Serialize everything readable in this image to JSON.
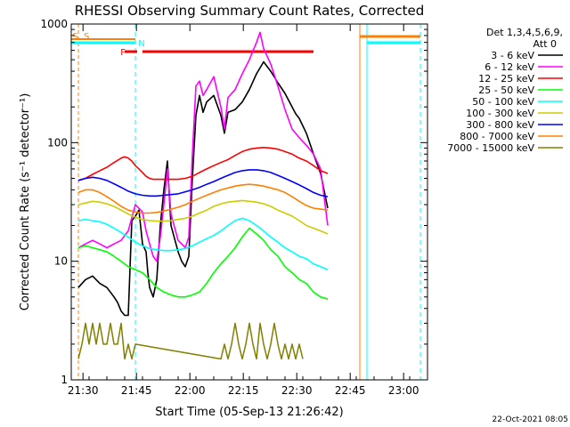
{
  "chart_data": {
    "type": "line",
    "title": "RHESSI Observing Summary Count Rates, Corrected",
    "xlabel": "Start Time (05-Sep-13 21:26:42)",
    "ylabel": "Corrected Count Rate (s⁻¹ detector⁻¹)",
    "x_unit": "minutes since 21:26:42",
    "xlim": [
      0,
      100
    ],
    "ylim": [
      1,
      1000
    ],
    "yscale": "log",
    "x_ticks": [
      {
        "label": "21:30",
        "value": 3.3
      },
      {
        "label": "21:45",
        "value": 18.3
      },
      {
        "label": "22:00",
        "value": 33.3
      },
      {
        "label": "22:15",
        "value": 48.3
      },
      {
        "label": "22:30",
        "value": 63.3
      },
      {
        "label": "22:45",
        "value": 78.3
      },
      {
        "label": "23:00",
        "value": 93.3
      }
    ],
    "y_ticks": [
      {
        "label": "1",
        "value": 1
      },
      {
        "label": "10",
        "value": 10
      },
      {
        "label": "100",
        "value": 100
      },
      {
        "label": "1000",
        "value": 1000
      }
    ],
    "legend_header": [
      "Det 1,3,4,5,6,9,",
      "Att 0"
    ],
    "footer_date": "22-Oct-2021 08:05",
    "series": [
      {
        "name": "3 - 6 keV",
        "color": "#000000",
        "x": [
          2,
          4,
          6,
          8,
          10,
          12,
          13,
          14,
          15,
          16,
          17,
          18,
          19,
          20,
          21,
          21.5,
          22,
          23,
          24,
          25,
          26,
          27,
          28,
          30,
          31,
          32,
          33,
          34,
          35,
          36,
          37,
          38,
          40,
          42,
          43,
          44,
          46,
          48,
          50,
          52,
          54,
          56,
          58,
          60,
          62,
          63,
          64,
          66,
          68,
          70,
          72
        ],
        "y": [
          6,
          7,
          7.5,
          6.5,
          6,
          5,
          4.5,
          3.8,
          3.5,
          3.5,
          22,
          24,
          27,
          14,
          12,
          8,
          6,
          5,
          7,
          20,
          40,
          70,
          20,
          12,
          10,
          9,
          11,
          50,
          170,
          250,
          180,
          220,
          250,
          170,
          120,
          180,
          190,
          220,
          280,
          380,
          480,
          400,
          320,
          260,
          200,
          175,
          160,
          120,
          80,
          55,
          28
        ]
      },
      {
        "name": "6 - 12 keV",
        "color": "#ff00ff",
        "x": [
          2,
          4,
          6,
          8,
          10,
          12,
          14,
          16,
          18,
          20,
          21,
          22,
          23,
          24,
          25,
          26,
          27,
          28,
          30,
          31,
          32,
          33,
          34,
          35,
          36,
          37,
          38,
          40,
          42,
          43,
          44,
          46,
          48,
          50,
          52,
          53,
          54,
          56,
          58,
          60,
          62,
          64,
          66,
          68,
          70,
          72
        ],
        "y": [
          13,
          14,
          15,
          14,
          13,
          14,
          15,
          18,
          30,
          26,
          18,
          14,
          11,
          10,
          16,
          30,
          60,
          25,
          15,
          14,
          13,
          16,
          80,
          300,
          330,
          250,
          280,
          360,
          200,
          130,
          240,
          280,
          380,
          500,
          700,
          850,
          620,
          460,
          300,
          190,
          130,
          110,
          95,
          80,
          60,
          20
        ]
      },
      {
        "name": "12 - 25 keV",
        "color": "#ff0000",
        "x": [
          2,
          4,
          6,
          8,
          10,
          12,
          14,
          15,
          16,
          17,
          18,
          19,
          20,
          21,
          22,
          23,
          24,
          26,
          28,
          30,
          32,
          34,
          36,
          38,
          40,
          42,
          44,
          46,
          48,
          50,
          52,
          54,
          56,
          58,
          60,
          62,
          64,
          66,
          68,
          70,
          72
        ],
        "y": [
          48,
          50,
          54,
          58,
          62,
          68,
          74,
          76,
          74,
          70,
          64,
          60,
          56,
          52,
          50,
          49,
          49,
          49,
          49,
          49,
          50,
          52,
          56,
          60,
          64,
          68,
          72,
          78,
          84,
          88,
          90,
          91,
          90,
          88,
          84,
          80,
          74,
          70,
          64,
          58,
          55
        ]
      },
      {
        "name": "25 - 50 keV",
        "color": "#00ff00",
        "x": [
          2,
          4,
          6,
          8,
          10,
          12,
          14,
          16,
          18,
          20,
          22,
          24,
          26,
          28,
          30,
          32,
          34,
          36,
          38,
          40,
          42,
          44,
          46,
          48,
          50,
          52,
          54,
          56,
          58,
          60,
          62,
          64,
          66,
          68,
          70,
          72
        ],
        "y": [
          13,
          13.5,
          13,
          12.5,
          12,
          11,
          10,
          9,
          8.5,
          8,
          7,
          6,
          5.5,
          5.2,
          5,
          5,
          5.2,
          5.5,
          6.5,
          8,
          9.5,
          11,
          13,
          16,
          19,
          17,
          15,
          12.5,
          11,
          9,
          8,
          7,
          6.5,
          5.5,
          5,
          4.8
        ]
      },
      {
        "name": "50 - 100 keV",
        "color": "#00ffff",
        "x": [
          2,
          4,
          6,
          8,
          10,
          12,
          14,
          16,
          18,
          20,
          22,
          24,
          26,
          28,
          30,
          32,
          34,
          36,
          38,
          40,
          42,
          44,
          46,
          48,
          50,
          52,
          54,
          56,
          58,
          60,
          62,
          64,
          66,
          68,
          70,
          72
        ],
        "y": [
          22,
          22.5,
          22,
          21.5,
          20.5,
          19,
          17.5,
          16,
          14.5,
          13.5,
          12.8,
          12.5,
          12.3,
          12.3,
          12.5,
          12.8,
          13.5,
          14.5,
          15.5,
          16.5,
          18,
          20,
          22,
          23,
          22,
          20,
          18,
          16,
          14.5,
          13,
          12,
          11,
          10.5,
          9.5,
          9,
          8.5
        ]
      },
      {
        "name": "100 - 300 keV",
        "color": "#cccc00",
        "x": [
          2,
          4,
          6,
          8,
          10,
          12,
          14,
          16,
          18,
          20,
          22,
          24,
          26,
          28,
          30,
          32,
          34,
          36,
          38,
          40,
          42,
          44,
          46,
          48,
          50,
          52,
          54,
          56,
          58,
          60,
          62,
          64,
          66,
          68,
          70,
          72
        ],
        "y": [
          30,
          31,
          32,
          31.5,
          30.5,
          29,
          27,
          25,
          23.5,
          22.5,
          22,
          21.8,
          21.8,
          22,
          22.5,
          23,
          24,
          25.5,
          27,
          29,
          30.5,
          31.5,
          32,
          32.5,
          32,
          31.5,
          30.5,
          29,
          27,
          25.5,
          24,
          22,
          20,
          19,
          18,
          17
        ]
      },
      {
        "name": "300 - 800 keV",
        "color": "#0000ff",
        "x": [
          2,
          4,
          6,
          8,
          10,
          12,
          14,
          16,
          18,
          20,
          22,
          24,
          26,
          28,
          30,
          32,
          34,
          36,
          38,
          40,
          42,
          44,
          46,
          48,
          50,
          52,
          54,
          56,
          58,
          60,
          62,
          64,
          66,
          68,
          70,
          72
        ],
        "y": [
          48,
          50,
          51,
          50,
          48,
          45,
          42,
          39,
          37,
          36,
          35.5,
          35.5,
          36,
          36.5,
          37,
          38.5,
          40,
          42,
          44.5,
          47,
          50,
          53,
          56,
          58,
          59,
          59,
          58,
          56,
          53,
          50,
          47,
          44,
          41,
          38,
          36,
          35
        ]
      },
      {
        "name": "800 - 7000 keV",
        "color": "#ff8000",
        "x": [
          2,
          4,
          6,
          8,
          10,
          12,
          14,
          16,
          18,
          20,
          22,
          24,
          26,
          28,
          30,
          32,
          34,
          36,
          38,
          40,
          42,
          44,
          46,
          48,
          50,
          52,
          54,
          56,
          58,
          60,
          62,
          64,
          66,
          68,
          70,
          72
        ],
        "y": [
          38,
          40,
          40,
          38,
          35,
          32,
          29,
          27,
          26,
          25.5,
          25.5,
          25.8,
          26.5,
          27.5,
          28.5,
          30,
          32,
          34,
          36,
          38,
          40,
          41.5,
          43,
          44,
          44.5,
          44,
          43,
          41.5,
          40,
          38,
          35,
          32,
          29.5,
          28,
          27.5,
          27
        ]
      },
      {
        "name": "7000 - 15000 keV",
        "color": "#808000",
        "x": [
          2,
          3,
          4,
          5,
          6,
          7,
          8,
          9,
          10,
          11,
          12,
          13,
          14,
          15,
          16,
          17,
          18,
          42,
          43,
          44,
          45,
          46,
          47,
          48,
          49,
          50,
          51,
          52,
          53,
          54,
          55,
          56,
          57,
          58,
          59,
          60,
          61,
          62,
          63,
          64,
          65
        ],
        "y": [
          1.5,
          2,
          3,
          2,
          3,
          2,
          3,
          2,
          2,
          3,
          2,
          2,
          3,
          1.5,
          2,
          1.5,
          2,
          1.5,
          2,
          1.5,
          2,
          3,
          2,
          1.5,
          2,
          3,
          2,
          1.5,
          3,
          2,
          1.5,
          2,
          3,
          2,
          1.5,
          2,
          1.5,
          2,
          1.5,
          2,
          1.5
        ]
      }
    ],
    "flags": {
      "s_label": "S",
      "n_label": "N",
      "f_label": "F",
      "saa_segments": [
        [
          0,
          18
        ]
      ],
      "night_segments": [
        [
          0,
          18
        ],
        [
          83,
          98
        ]
      ],
      "flare_segments": [
        [
          15,
          18.5
        ],
        [
          20,
          68
        ]
      ],
      "attenuator_segments": [
        [
          81,
          98
        ]
      ],
      "saa_color": "#ff8000",
      "night_color": "#00ffff",
      "flare_color": "#ff0000",
      "attenuator_color": "#ff8000",
      "saa_boundary_x": 2,
      "night_boundaries_x": [
        18,
        83,
        98
      ],
      "attenuator_boundary_x": 81
    }
  }
}
